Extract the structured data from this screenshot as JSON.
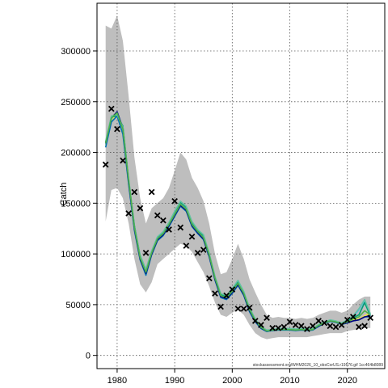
{
  "chart_data": {
    "type": "line",
    "title": "",
    "xlabel": "",
    "ylabel": "Catch",
    "footnote": "stockassessment.org/WHM2026_10_obsCorUS.r19576.gif 1cc464b8089",
    "xlim": [
      1976.5,
      2026.5
    ],
    "ylim": [
      -13000,
      347000
    ],
    "x_ticks": [
      1980,
      1990,
      2000,
      2010,
      2020
    ],
    "y_ticks": [
      0,
      50000,
      100000,
      150000,
      200000,
      250000,
      300000
    ],
    "grid": true,
    "colors": {
      "band": "#bebebe",
      "observed": "#000000",
      "series": [
        "#f0e442",
        "#56b4e9",
        "#009e73",
        "#0072b2",
        "#000080",
        "#66c2a5",
        "#4daf4a"
      ]
    },
    "x": [
      1978,
      1979,
      1980,
      1981,
      1982,
      1983,
      1984,
      1985,
      1986,
      1987,
      1988,
      1989,
      1990,
      1991,
      1992,
      1993,
      1994,
      1995,
      1996,
      1997,
      1998,
      1999,
      2000,
      2001,
      2002,
      2003,
      2004,
      2005,
      2006,
      2007,
      2008,
      2009,
      2010,
      2011,
      2012,
      2013,
      2014,
      2015,
      2016,
      2017,
      2018,
      2019,
      2020,
      2021,
      2022,
      2023,
      2024
    ],
    "confidence_band": {
      "upper": [
        325000,
        322000,
        335000,
        310000,
        255000,
        195000,
        155000,
        130000,
        145000,
        150000,
        155000,
        165000,
        182000,
        200000,
        193000,
        175000,
        165000,
        152000,
        130000,
        100000,
        80000,
        82000,
        95000,
        110000,
        95000,
        75000,
        62000,
        50000,
        40000,
        37000,
        38000,
        37000,
        37000,
        36000,
        37000,
        36000,
        37000,
        40000,
        42000,
        44000,
        44000,
        42000,
        44000,
        50000,
        55000,
        58000,
        58000
      ],
      "lower": [
        132000,
        163000,
        165000,
        155000,
        130000,
        95000,
        70000,
        62000,
        72000,
        90000,
        95000,
        100000,
        105000,
        110000,
        108000,
        102000,
        92000,
        82000,
        68000,
        52000,
        40000,
        38000,
        42000,
        45000,
        40000,
        30000,
        22000,
        18000,
        16000,
        17000,
        18000,
        18000,
        18000,
        18000,
        18000,
        18000,
        19000,
        20000,
        21000,
        22000,
        22000,
        22000,
        24000,
        25000,
        26000,
        27000,
        27000
      ]
    },
    "series": [
      {
        "values": [
          207000,
          232000,
          238000,
          222000,
          170000,
          125000,
          96000,
          80000,
          100000,
          115000,
          120000,
          128000,
          138000,
          148000,
          143000,
          128000,
          121000,
          115000,
          98000,
          75000,
          58000,
          56000,
          62000,
          70000,
          60000,
          44000,
          34000,
          27000,
          24000,
          25000,
          25500,
          25500,
          25500,
          25000,
          25500,
          25000,
          25500,
          29000,
          32000,
          34000,
          33000,
          31000,
          33000,
          35000,
          36000,
          39000,
          42000
        ]
      },
      {
        "values": [
          208000,
          233000,
          240000,
          224000,
          172000,
          126000,
          97000,
          83000,
          101000,
          114000,
          119000,
          129000,
          139000,
          149000,
          144000,
          129000,
          122000,
          116000,
          99000,
          76000,
          59000,
          57000,
          64000,
          72000,
          62000,
          45000,
          35000,
          27500,
          24000,
          25000,
          25500,
          25500,
          25500,
          25000,
          25500,
          25000,
          25500,
          29000,
          32000,
          34000,
          33000,
          31000,
          34000,
          38000,
          45000,
          54000,
          40000
        ]
      },
      {
        "values": [
          210000,
          235000,
          236000,
          226000,
          173000,
          128000,
          98000,
          84000,
          102000,
          116000,
          121000,
          130000,
          141000,
          151000,
          146000,
          131000,
          123000,
          118000,
          100000,
          77000,
          60000,
          58000,
          65000,
          73000,
          62000,
          46000,
          35000,
          28000,
          24500,
          25000,
          26000,
          26000,
          26000,
          25500,
          26000,
          25500,
          26000,
          30000,
          32500,
          34500,
          33500,
          31500,
          34000,
          37000,
          40000,
          52000,
          39000
        ]
      },
      {
        "values": [
          205000,
          230000,
          236000,
          218000,
          168000,
          123000,
          94000,
          79000,
          99000,
          113000,
          118000,
          127000,
          137000,
          147000,
          142000,
          127000,
          120000,
          114000,
          97000,
          74000,
          57000,
          55000,
          61000,
          69000,
          59000,
          43000,
          33000,
          26500,
          23500,
          24500,
          25000,
          25000,
          25000,
          24500,
          25000,
          24500,
          25000,
          28500,
          31500,
          33500,
          32500,
          30500,
          32000,
          34000,
          35000,
          38000,
          38000
        ]
      },
      {
        "values": [
          209000,
          234000,
          240000,
          224000,
          171000,
          125000,
          95000,
          81000,
          100000,
          114000,
          119000,
          128000,
          138000,
          148000,
          143000,
          128000,
          121000,
          115000,
          98000,
          75000,
          58000,
          56000,
          62000,
          70000,
          60000,
          44000,
          34000,
          27000,
          24000,
          25000,
          25500,
          25500,
          25500,
          25000,
          25500,
          25000,
          25500,
          29000,
          32000,
          34000,
          33000,
          31000,
          32000,
          34000,
          35000,
          38000,
          39000
        ]
      },
      {
        "values": [
          211000,
          236000,
          237000,
          225000,
          174000,
          127000,
          99000,
          85000,
          103000,
          117000,
          122000,
          131000,
          142000,
          152000,
          147000,
          132000,
          124000,
          119000,
          101000,
          78000,
          61000,
          59000,
          66000,
          74000,
          63000,
          47000,
          36000,
          28500,
          25000,
          25500,
          26500,
          26500,
          26500,
          26000,
          26500,
          26000,
          26500,
          30500,
          33000,
          35000,
          34000,
          32000,
          35000,
          39000,
          46000,
          55000,
          41000
        ]
      },
      {
        "values": [
          209000,
          234000,
          239000,
          223000,
          172000,
          126000,
          96000,
          82000,
          101000,
          115000,
          120000,
          129000,
          139000,
          149000,
          144000,
          129000,
          122000,
          116000,
          99000,
          76000,
          59000,
          57000,
          63000,
          71000,
          61000,
          45000,
          34500,
          27500,
          24000,
          25000,
          25500,
          25500,
          25500,
          25000,
          25500,
          25000,
          25500,
          29500,
          32000,
          34000,
          33000,
          31000,
          33000,
          36000,
          38000,
          44000,
          40000
        ]
      }
    ],
    "observed": {
      "x": [
        1978,
        1979,
        1980,
        1981,
        1982,
        1983,
        1984,
        1985,
        1986,
        1987,
        1988,
        1989,
        1990,
        1991,
        1992,
        1993,
        1994,
        1995,
        1996,
        1997,
        1998,
        1999,
        2000,
        2001,
        2002,
        2003,
        2004,
        2005,
        2006,
        2007,
        2008,
        2009,
        2010,
        2011,
        2012,
        2013,
        2014,
        2015,
        2016,
        2017,
        2018,
        2019,
        2020,
        2021,
        2022,
        2023,
        2024
      ],
      "y": [
        188000,
        243000,
        223000,
        192000,
        140000,
        161000,
        145000,
        101000,
        161000,
        138000,
        133000,
        124000,
        152000,
        126000,
        108000,
        117000,
        101000,
        104000,
        76000,
        61000,
        48000,
        59000,
        65000,
        46000,
        46000,
        47000,
        34000,
        30000,
        37000,
        27000,
        27000,
        28000,
        33000,
        30000,
        29000,
        26000,
        29000,
        34000,
        32000,
        29000,
        28000,
        30000,
        35000,
        38000,
        28000,
        29000,
        37000
      ]
    }
  }
}
